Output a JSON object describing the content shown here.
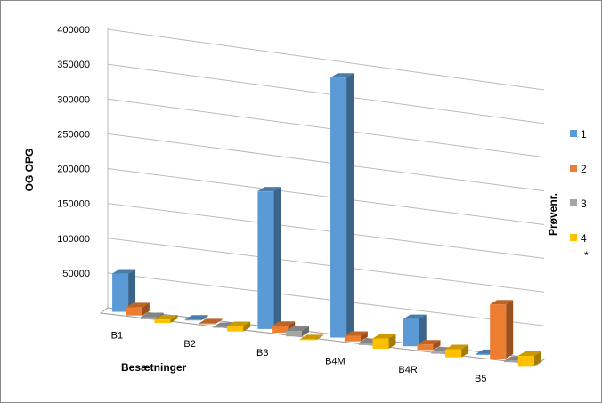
{
  "chart_data": {
    "type": "bar",
    "subtype": "3d-clustered-column",
    "xlabel": "Besætninger",
    "ylabel": "OG OPG",
    "legend_title": "Prøvenr.",
    "legend_note": "*",
    "legend_position": "right",
    "grid": true,
    "ylim": [
      0,
      400000
    ],
    "yticks": [
      "50000",
      "100000",
      "150000",
      "200000",
      "250000",
      "300000",
      "350000",
      "400000"
    ],
    "categories": [
      "B1",
      "B2",
      "B3",
      "B4M",
      "B4R",
      "B5"
    ],
    "series": [
      {
        "name": "1",
        "color": "#5b9bd5",
        "values": [
          55000,
          0,
          200000,
          380000,
          40000,
          0
        ]
      },
      {
        "name": "2",
        "color": "#ed7d31",
        "values": [
          12000,
          0,
          10000,
          8000,
          8000,
          80000
        ]
      },
      {
        "name": "3",
        "color": "#a5a5a5",
        "values": [
          3000,
          0,
          8000,
          3000,
          3000,
          2000
        ]
      },
      {
        "name": "4",
        "color": "#ffc000",
        "values": [
          5000,
          8000,
          0,
          15000,
          12000,
          15000
        ]
      }
    ]
  }
}
